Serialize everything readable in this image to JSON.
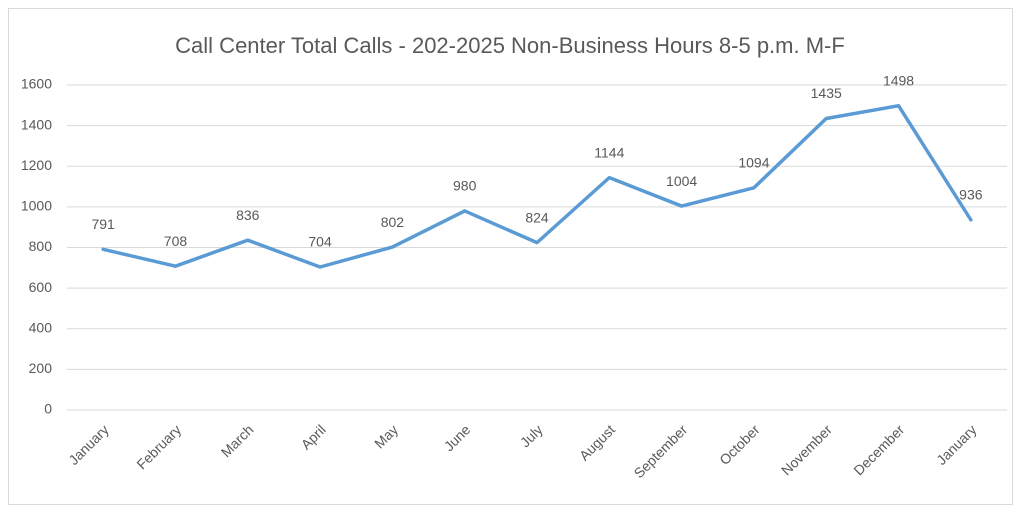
{
  "chart_data": {
    "type": "line",
    "title": "Call Center Total Calls - 202-2025 Non-Business Hours 8-5 p.m. M-F",
    "categories": [
      "January",
      "February",
      "March",
      "April",
      "May",
      "June",
      "July",
      "August",
      "September",
      "October",
      "November",
      "December",
      "January"
    ],
    "values": [
      791,
      708,
      836,
      704,
      802,
      980,
      824,
      1144,
      1004,
      1094,
      1435,
      1498,
      936
    ],
    "color": "#5b9bd5",
    "ylim": [
      0,
      1600
    ],
    "yticks": [
      0,
      200,
      400,
      600,
      800,
      1000,
      1200,
      1400,
      1600
    ],
    "grid": true
  }
}
